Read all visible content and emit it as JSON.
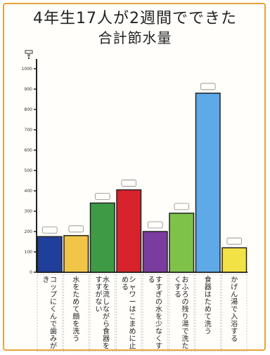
{
  "title": "4年生17人が2週間でできた",
  "subtitle": "合計節水量",
  "chart_data": {
    "type": "bar",
    "ylim": [
      0,
      1000
    ],
    "yticks": [
      0,
      100,
      200,
      300,
      400,
      500,
      600,
      700,
      800,
      900,
      1000
    ],
    "yunit_icon": "faucet-icon",
    "grid": false,
    "categories": [
      "コップにくんで歯みがき",
      "水をためて顔を洗う",
      "水を流しながら食器をすすがない",
      "シャワーはこまめに止める",
      "すすぎの水を少なくする",
      "おふろの残り湯で洗たくする",
      "食器はためて洗う",
      "かげん湯で入浴する"
    ],
    "values": [
      175,
      180,
      340,
      405,
      200,
      290,
      880,
      120
    ],
    "colors": [
      "#1f3f9a",
      "#f0c548",
      "#3f9a45",
      "#d8222c",
      "#7a3c9e",
      "#7fc24a",
      "#5ea9e8",
      "#f2e245"
    ]
  }
}
